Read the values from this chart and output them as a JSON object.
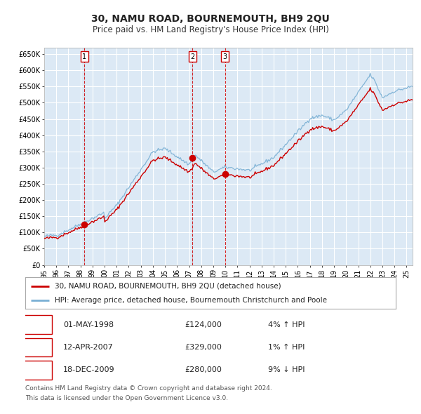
{
  "title": "30, NAMU ROAD, BOURNEMOUTH, BH9 2QU",
  "subtitle": "Price paid vs. HM Land Registry's House Price Index (HPI)",
  "title_fontsize": 10,
  "subtitle_fontsize": 8.5,
  "bg_color": "#dce9f5",
  "grid_color": "#ffffff",
  "red_line_color": "#cc0000",
  "blue_line_color": "#7ab0d4",
  "sale_marker_color": "#cc0000",
  "dashed_vline_color": "#cc0000",
  "ylim": [
    0,
    670000
  ],
  "yticks": [
    0,
    50000,
    100000,
    150000,
    200000,
    250000,
    300000,
    350000,
    400000,
    450000,
    500000,
    550000,
    600000,
    650000
  ],
  "ytick_labels": [
    "£0",
    "£50K",
    "£100K",
    "£150K",
    "£200K",
    "£250K",
    "£300K",
    "£350K",
    "£400K",
    "£450K",
    "£500K",
    "£550K",
    "£600K",
    "£650K"
  ],
  "xmin": 1995.0,
  "xmax": 2025.5,
  "sales": [
    {
      "num": 1,
      "date_str": "01-MAY-1998",
      "price": 124000,
      "x_year": 1998.33,
      "pct": "4%",
      "dir": "↑"
    },
    {
      "num": 2,
      "date_str": "12-APR-2007",
      "price": 329000,
      "x_year": 2007.28,
      "pct": "1%",
      "dir": "↑"
    },
    {
      "num": 3,
      "date_str": "18-DEC-2009",
      "price": 280000,
      "x_year": 2009.96,
      "pct": "9%",
      "dir": "↓"
    }
  ],
  "legend_line1": "30, NAMU ROAD, BOURNEMOUTH, BH9 2QU (detached house)",
  "legend_line2": "HPI: Average price, detached house, Bournemouth Christchurch and Poole",
  "footer1": "Contains HM Land Registry data © Crown copyright and database right 2024.",
  "footer2": "This data is licensed under the Open Government Licence v3.0."
}
